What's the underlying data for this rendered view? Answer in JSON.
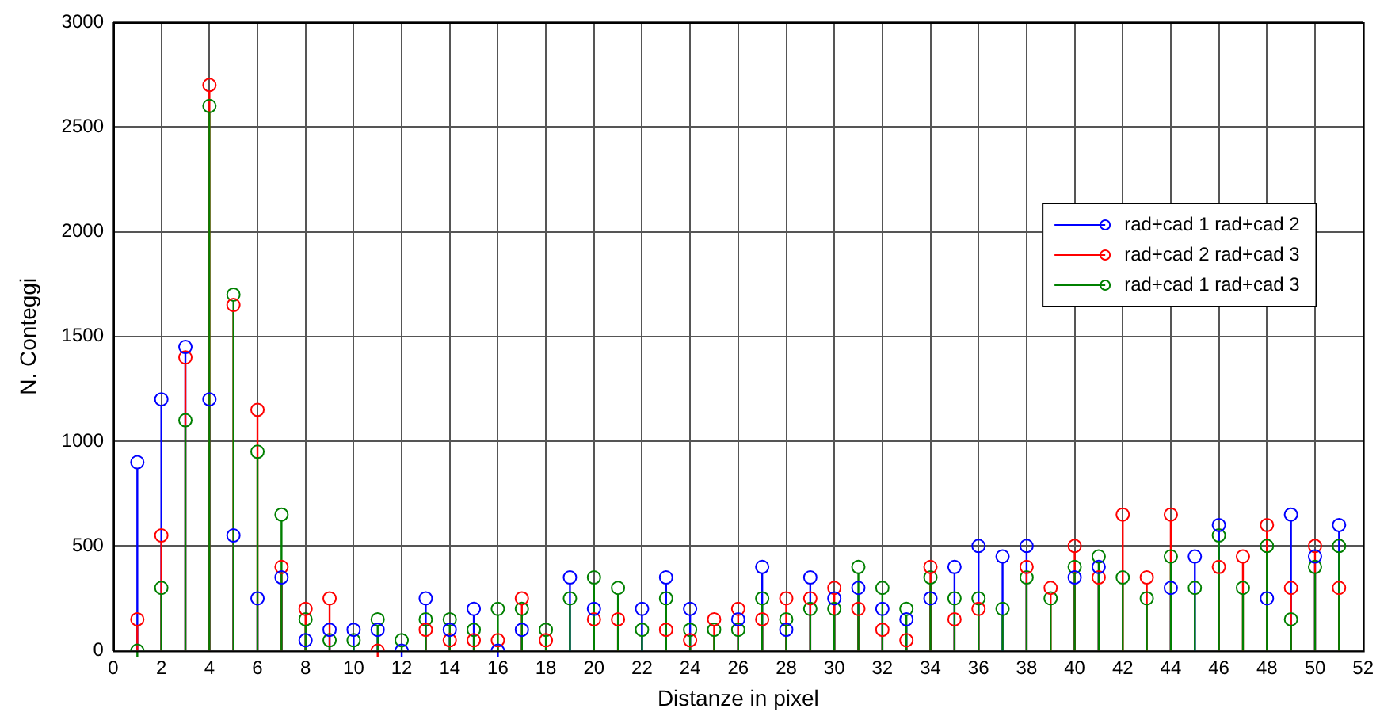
{
  "chart_data": {
    "type": "lollipop",
    "xlabel": "Distanze in pixel",
    "ylabel": "N. Conteggi",
    "x": [
      1,
      2,
      3,
      4,
      5,
      6,
      7,
      8,
      9,
      10,
      11,
      12,
      13,
      14,
      15,
      16,
      17,
      18,
      19,
      20,
      21,
      22,
      23,
      24,
      25,
      26,
      27,
      28,
      29,
      30,
      31,
      32,
      33,
      34,
      35,
      36,
      37,
      38,
      39,
      40,
      41,
      42,
      43,
      44,
      45,
      46,
      47,
      48,
      49,
      50,
      51
    ],
    "xlim": [
      0,
      52
    ],
    "xticks": [
      0,
      2,
      4,
      6,
      8,
      10,
      12,
      14,
      16,
      18,
      20,
      22,
      24,
      26,
      28,
      30,
      32,
      34,
      36,
      38,
      40,
      42,
      44,
      46,
      48,
      50,
      52
    ],
    "ylim": [
      0,
      3000
    ],
    "yticks": [
      0,
      500,
      1000,
      1500,
      2000,
      2500,
      3000
    ],
    "grid": true,
    "legend": "top right",
    "marker": "circle",
    "series": [
      {
        "name": "rad+cad 1 rad+cad 2",
        "color": "#0000ff",
        "values": [
          900,
          1200,
          1450,
          1200,
          550,
          250,
          350,
          50,
          100,
          100,
          100,
          0,
          250,
          100,
          200,
          0,
          100,
          null,
          350,
          200,
          null,
          200,
          350,
          200,
          null,
          150,
          400,
          100,
          350,
          250,
          300,
          200,
          150,
          250,
          400,
          500,
          450,
          500,
          null,
          350,
          400,
          null,
          null,
          300,
          450,
          600,
          null,
          250,
          650,
          450,
          600
        ]
      },
      {
        "name": "rad+cad 2 rad+cad 3",
        "color": "#ff0000",
        "values": [
          150,
          550,
          1400,
          2700,
          1650,
          1150,
          400,
          200,
          250,
          null,
          0,
          null,
          100,
          50,
          50,
          50,
          250,
          50,
          null,
          150,
          150,
          null,
          100,
          50,
          150,
          200,
          150,
          250,
          250,
          300,
          200,
          100,
          50,
          400,
          150,
          200,
          null,
          400,
          300,
          500,
          350,
          650,
          350,
          650,
          null,
          400,
          450,
          600,
          300,
          500,
          300
        ]
      },
      {
        "name": "rad+cad 1 rad+cad 3",
        "color": "#008000",
        "values": [
          0,
          300,
          1100,
          2600,
          1700,
          950,
          650,
          150,
          50,
          50,
          150,
          50,
          150,
          150,
          100,
          200,
          200,
          100,
          250,
          350,
          300,
          100,
          250,
          100,
          100,
          100,
          250,
          150,
          200,
          200,
          400,
          300,
          200,
          350,
          250,
          250,
          200,
          350,
          250,
          400,
          450,
          350,
          250,
          450,
          300,
          550,
          300,
          500,
          150,
          400,
          500
        ]
      }
    ]
  }
}
